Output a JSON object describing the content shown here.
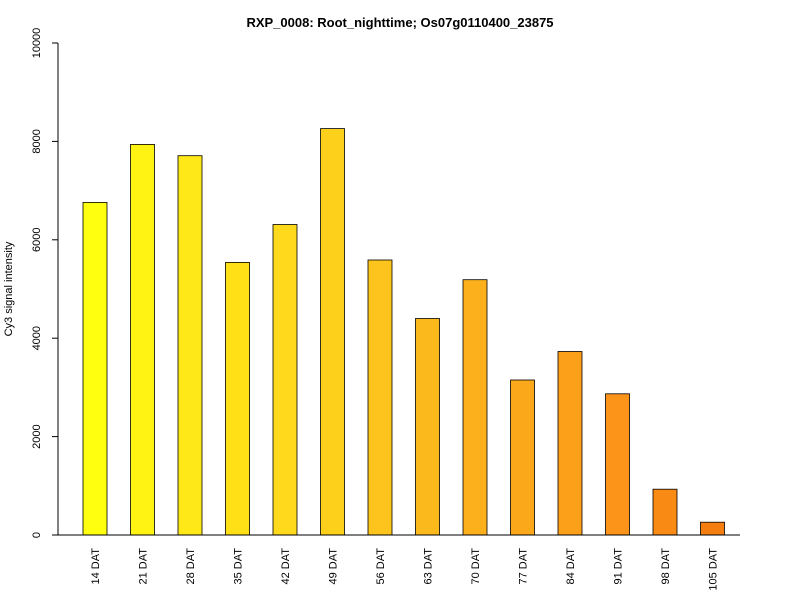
{
  "chart_data": {
    "type": "bar",
    "title": "RXP_0008: Root_nighttime; Os07g0110400_23875",
    "xlabel": "",
    "ylabel": "Cy3 signal intensity",
    "ylim": [
      0,
      10000
    ],
    "yticks": [
      0,
      2000,
      4000,
      6000,
      8000,
      10000
    ],
    "grid": false,
    "legend": "none",
    "categories": [
      "14 DAT",
      "21 DAT",
      "28 DAT",
      "35 DAT",
      "42 DAT",
      "49 DAT",
      "56 DAT",
      "63 DAT",
      "70 DAT",
      "77 DAT",
      "84 DAT",
      "91 DAT",
      "98 DAT",
      "105 DAT"
    ],
    "values": [
      6760,
      7940,
      7710,
      5540,
      6310,
      8260,
      5590,
      4400,
      5190,
      3150,
      3730,
      2870,
      930,
      260
    ],
    "colors": [
      "#ffff10",
      "#fff314",
      "#ffe818",
      "#ffe017",
      "#fed91c",
      "#fdd01c",
      "#fcc41c",
      "#fcb91c",
      "#fcb11c",
      "#fca81b",
      "#fca01a",
      "#fb9418",
      "#f98a14",
      "#f57e10"
    ]
  }
}
